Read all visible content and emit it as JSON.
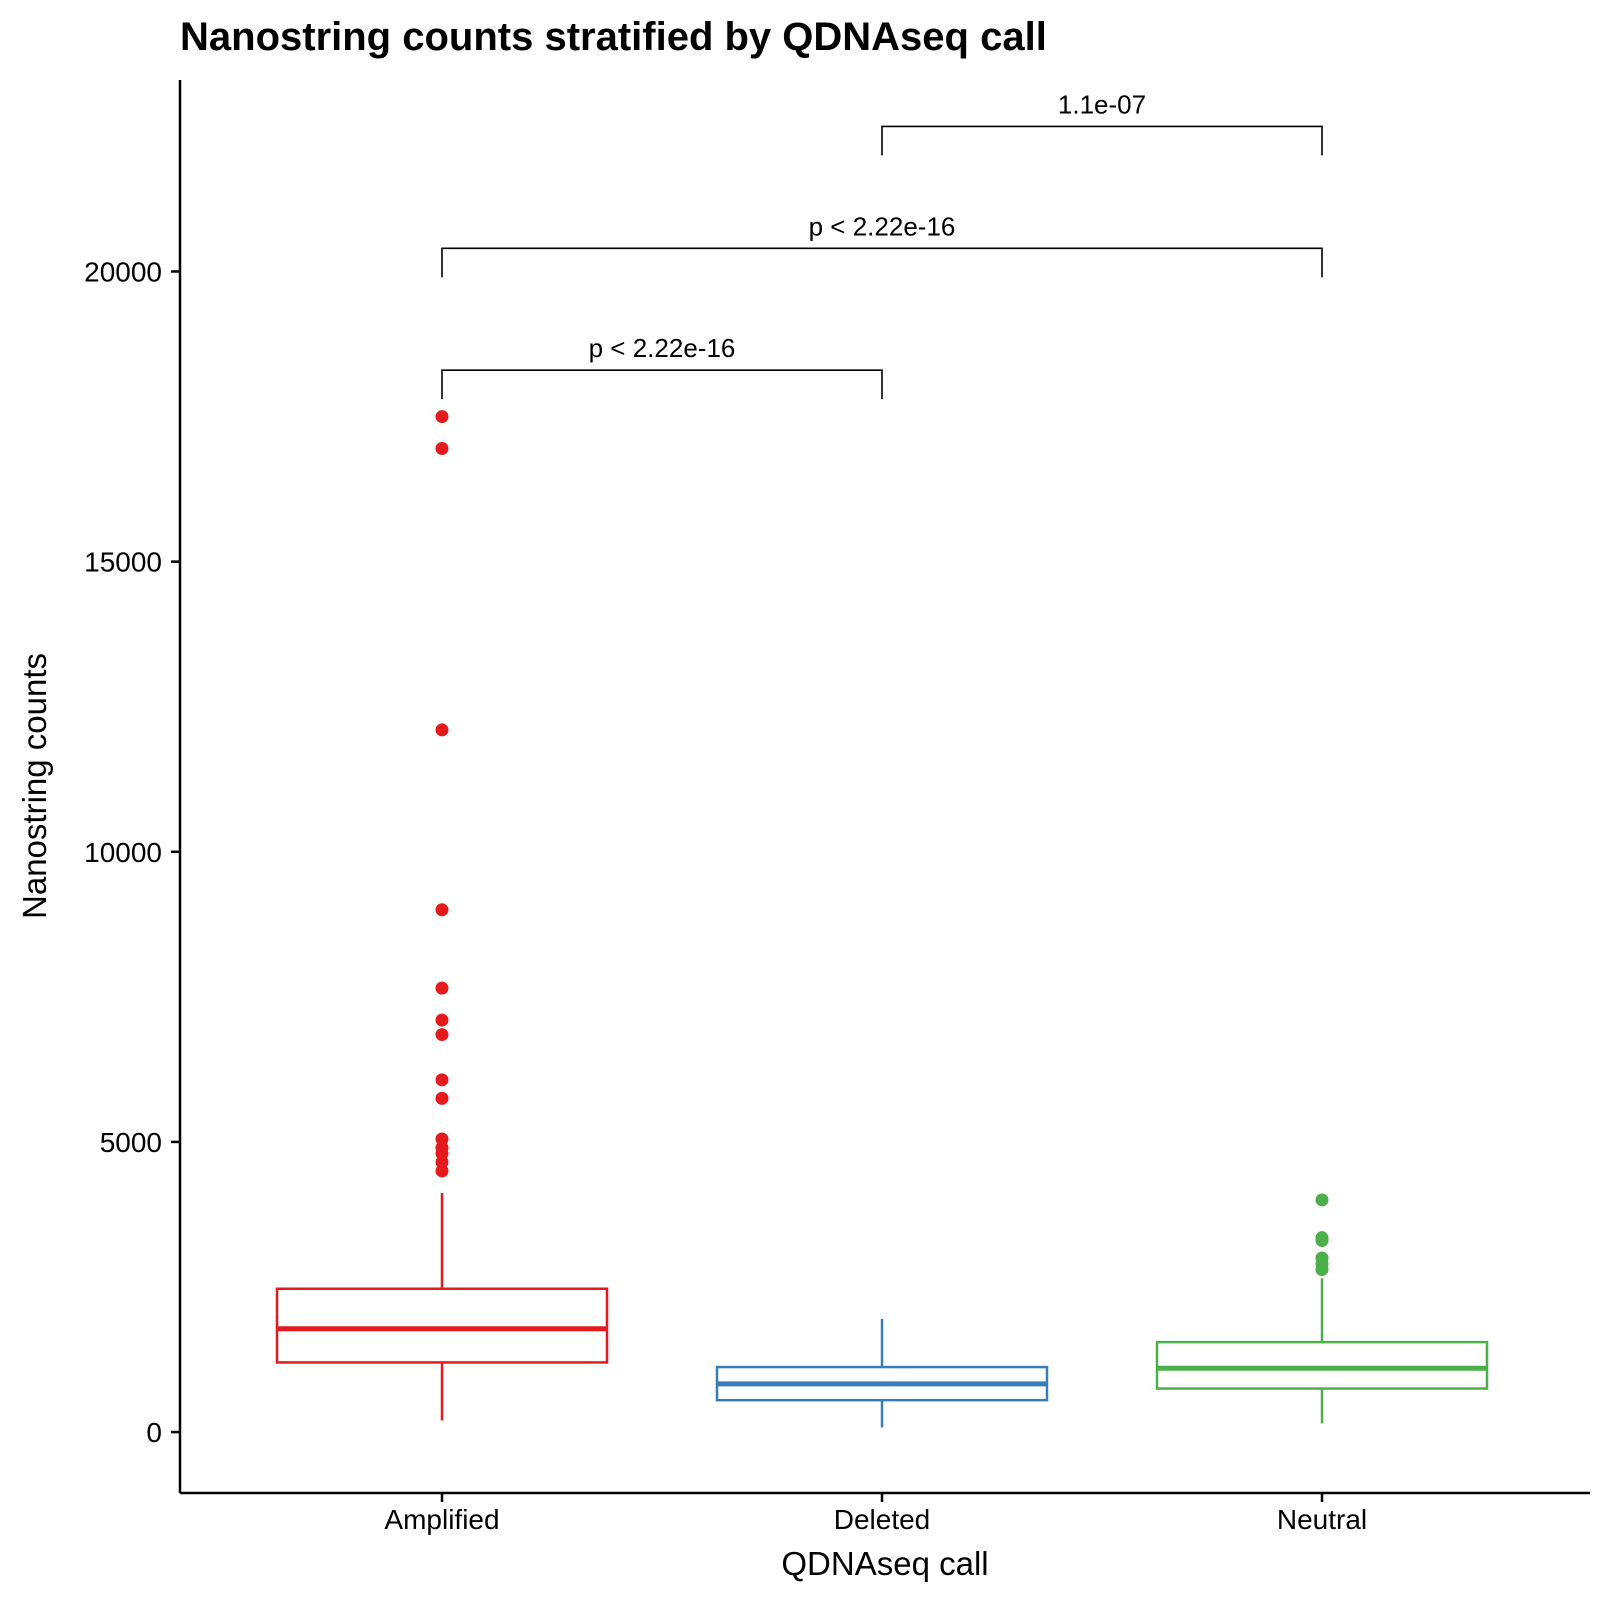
{
  "chart_data": {
    "type": "box",
    "title": "Nanostring counts stratified by QDNAseq call",
    "xlabel": "QDNAseq call",
    "ylabel": "Nanostring counts",
    "ylim": [
      -1050,
      23300
    ],
    "yticks": [
      0,
      5000,
      10000,
      15000,
      20000
    ],
    "yticklabels": [
      "0",
      "5000",
      "10000",
      "15000",
      "20000"
    ],
    "grid": false,
    "categories": [
      "Amplified",
      "Deleted",
      "Neutral"
    ],
    "series": [
      {
        "category": "Amplified",
        "color": "#e41a1c",
        "whisker_low": 200,
        "q1": 1200,
        "median": 1780,
        "q3": 2470,
        "whisker_high": 4120,
        "outliers": [
          4500,
          4650,
          4800,
          4900,
          5050,
          5750,
          6070,
          6850,
          7100,
          7650,
          9000,
          12100,
          16950,
          17500
        ]
      },
      {
        "category": "Deleted",
        "color": "#377eb8",
        "whisker_low": 80,
        "q1": 550,
        "median": 830,
        "q3": 1120,
        "whisker_high": 1950,
        "outliers": []
      },
      {
        "category": "Neutral",
        "color": "#4daf4a",
        "whisker_low": 150,
        "q1": 750,
        "median": 1100,
        "q3": 1550,
        "whisker_high": 2650,
        "outliers": [
          2800,
          2900,
          3000,
          3300,
          3350,
          4000
        ]
      }
    ],
    "comparisons": [
      {
        "from": "Amplified",
        "to": "Deleted",
        "label": "p < 2.22e-16",
        "y": 18300
      },
      {
        "from": "Amplified",
        "to": "Neutral",
        "label": "p < 2.22e-16",
        "y": 20400
      },
      {
        "from": "Deleted",
        "to": "Neutral",
        "label": "1.1e-07",
        "y": 22500
      }
    ]
  }
}
